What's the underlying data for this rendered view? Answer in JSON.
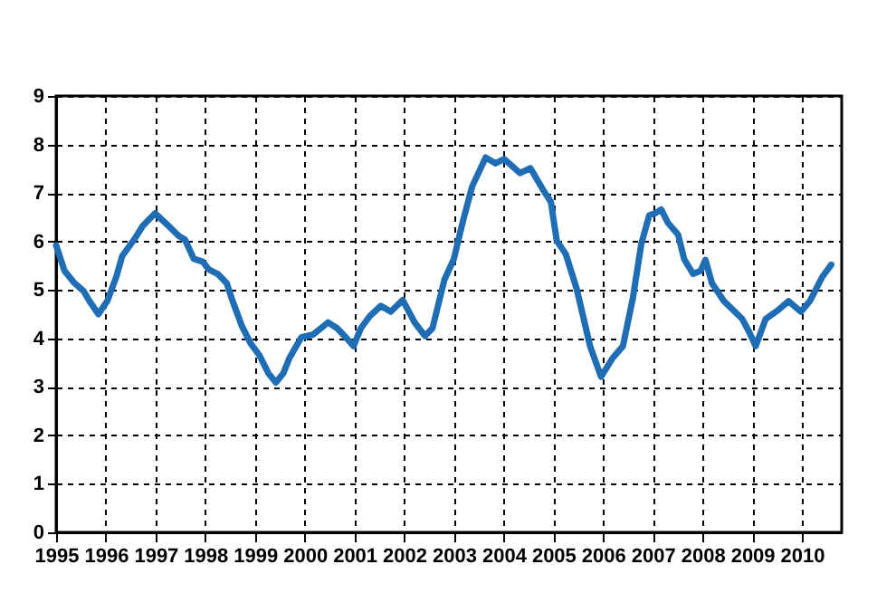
{
  "chart_data": {
    "type": "line",
    "x": [
      1995.0,
      1995.17,
      1995.37,
      1995.55,
      1995.67,
      1995.85,
      1996.03,
      1996.21,
      1996.33,
      1996.57,
      1996.75,
      1996.99,
      1997.23,
      1997.47,
      1997.59,
      1997.77,
      1997.95,
      1998.07,
      1998.25,
      1998.43,
      1998.55,
      1998.73,
      1998.91,
      1999.09,
      1999.27,
      1999.42,
      1999.57,
      1999.69,
      1999.93,
      2000.17,
      2000.47,
      2000.65,
      2000.83,
      2000.98,
      2001.13,
      2001.31,
      2001.53,
      2001.73,
      2001.97,
      2002.21,
      2002.42,
      2002.57,
      2002.81,
      2003.0,
      2003.19,
      2003.37,
      2003.64,
      2003.84,
      2004.01,
      2004.33,
      2004.54,
      2004.79,
      2004.95,
      2005.07,
      2005.25,
      2005.47,
      2005.74,
      2005.96,
      2006.19,
      2006.4,
      2006.6,
      2006.77,
      2006.93,
      2007.05,
      2007.17,
      2007.3,
      2007.51,
      2007.63,
      2007.81,
      2007.96,
      2008.06,
      2008.19,
      2008.43,
      2008.8,
      2008.93,
      2009.07,
      2009.27,
      2009.52,
      2009.73,
      2009.98,
      2010.16,
      2010.41,
      2010.59
    ],
    "series": [
      {
        "color": "#1f6db5",
        "values": [
          5.92,
          5.39,
          5.14,
          4.98,
          4.77,
          4.5,
          4.77,
          5.27,
          5.7,
          6.04,
          6.33,
          6.58,
          6.35,
          6.11,
          6.04,
          5.64,
          5.58,
          5.42,
          5.33,
          5.14,
          4.77,
          4.27,
          3.9,
          3.65,
          3.28,
          3.09,
          3.28,
          3.59,
          4.02,
          4.08,
          4.33,
          4.21,
          4.02,
          3.84,
          4.21,
          4.46,
          4.67,
          4.55,
          4.79,
          4.33,
          4.05,
          4.21,
          5.21,
          5.64,
          6.45,
          7.14,
          7.73,
          7.61,
          7.7,
          7.41,
          7.51,
          7.07,
          6.82,
          6.01,
          5.74,
          5.02,
          3.84,
          3.21,
          3.59,
          3.84,
          4.83,
          5.95,
          6.54,
          6.58,
          6.66,
          6.39,
          6.14,
          5.64,
          5.33,
          5.39,
          5.62,
          5.14,
          4.77,
          4.4,
          4.15,
          3.84,
          4.4,
          4.58,
          4.77,
          4.55,
          4.77,
          5.27,
          5.52
        ]
      }
    ],
    "xlim": [
      1995,
      2010.8
    ],
    "xticks": [
      1995,
      1996,
      1997,
      1998,
      1999,
      2000,
      2001,
      2002,
      2003,
      2004,
      2005,
      2006,
      2007,
      2008,
      2009,
      2010
    ],
    "ylim": [
      0,
      9
    ],
    "yticks": [
      0,
      1,
      2,
      3,
      4,
      5,
      6,
      7,
      8,
      9
    ],
    "grid": true,
    "line_style": "solid",
    "marker": "none"
  }
}
